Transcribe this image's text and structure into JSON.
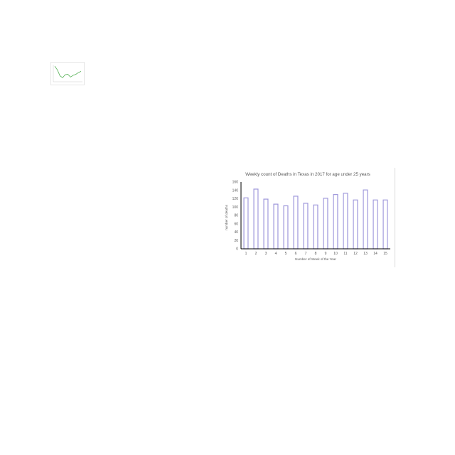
{
  "thumbnail": {
    "line_color": "#55b055",
    "series": [
      95,
      70,
      30,
      18,
      38,
      40,
      22,
      34,
      40,
      52,
      60
    ]
  },
  "chart_data": {
    "type": "bar",
    "title": "Weekly count of Deaths in Texas in 2017 for age under 25 years",
    "xlabel": "Number of Week of the Year",
    "ylabel": "number of deaths",
    "categories": [
      "1",
      "2",
      "3",
      "4",
      "5",
      "6",
      "7",
      "8",
      "9",
      "10",
      "11",
      "12",
      "13",
      "14",
      "15"
    ],
    "values": [
      122,
      143,
      119,
      107,
      103,
      126,
      109,
      105,
      121,
      130,
      133,
      117,
      141,
      117,
      117
    ],
    "ylim": [
      0,
      160
    ],
    "yticks": [
      "0",
      "20",
      "40",
      "60",
      "80",
      "100",
      "120",
      "140",
      "160"
    ],
    "grid": false,
    "legend": "none",
    "bar_color": "#9f98db"
  }
}
